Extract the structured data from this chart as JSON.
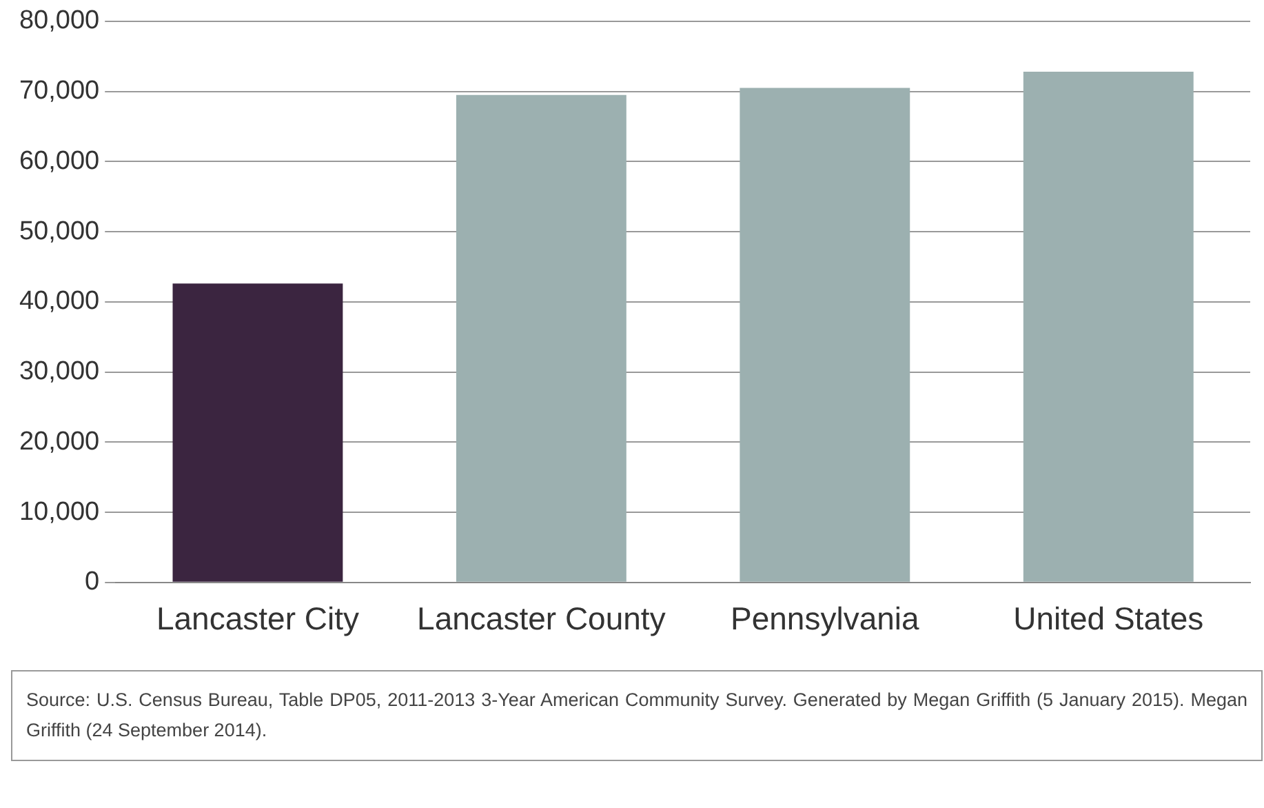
{
  "chart_data": {
    "type": "bar",
    "categories": [
      "Lancaster City",
      "Lancaster County",
      "Pennsylvania",
      "United States"
    ],
    "values": [
      42600,
      69500,
      70500,
      72800
    ],
    "colors": [
      "#3b2540",
      "#9cb0b0",
      "#9cb0b0",
      "#9cb0b0"
    ],
    "ylim": [
      0,
      80000
    ],
    "yticks": [
      0,
      {
        "value": 10000,
        "label": "10,000"
      },
      {
        "value": 20000,
        "label": "20,000"
      },
      {
        "value": 30000,
        "label": "30,000"
      },
      {
        "value": 40000,
        "label": "40,000"
      },
      {
        "value": 50000,
        "label": "50,000"
      },
      {
        "value": 60000,
        "label": "60,000"
      },
      {
        "value": 70000,
        "label": "70,000"
      },
      {
        "value": 80000,
        "label": "80,000"
      }
    ],
    "grid": "y",
    "legend": false,
    "annotations": [
      "Source: U.S. Census Bureau, Table DP05, 2011-2013 3-Year American Community Survey. Generated by Megan Griffith (5 January 2015). Megan Griffith (24 September 2014)."
    ]
  }
}
